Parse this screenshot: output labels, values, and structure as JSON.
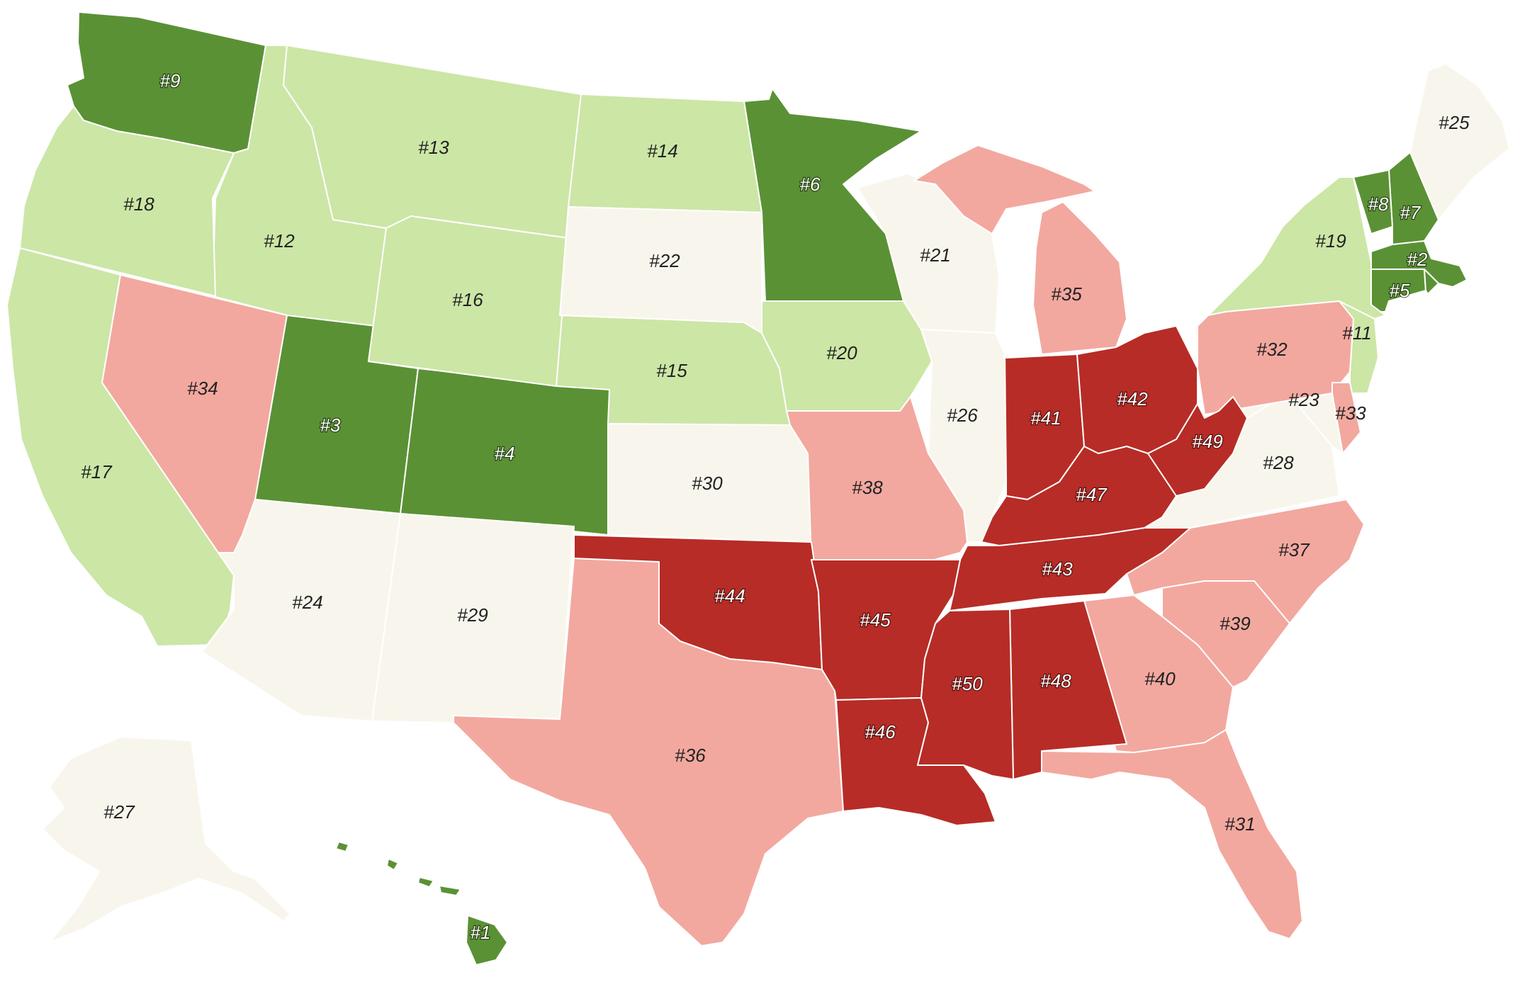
{
  "colors": {
    "dark_green": "#5b9135",
    "light_green": "#cce6a6",
    "cream": "#f8f6ec",
    "pink": "#f2a89f",
    "dark_red": "#b72c26"
  },
  "states": [
    {
      "abbr": "HI",
      "rank": "#1",
      "tier": "dark_green"
    },
    {
      "abbr": "MA",
      "rank": "#2",
      "tier": "dark_green"
    },
    {
      "abbr": "UT",
      "rank": "#3",
      "tier": "dark_green"
    },
    {
      "abbr": "CO",
      "rank": "#4",
      "tier": "dark_green"
    },
    {
      "abbr": "CT",
      "rank": "#5",
      "tier": "dark_green"
    },
    {
      "abbr": "MN",
      "rank": "#6",
      "tier": "dark_green"
    },
    {
      "abbr": "NH",
      "rank": "#7",
      "tier": "dark_green"
    },
    {
      "abbr": "VT",
      "rank": "#8",
      "tier": "dark_green"
    },
    {
      "abbr": "WA",
      "rank": "#9",
      "tier": "dark_green"
    },
    {
      "abbr": "RI",
      "rank": "",
      "tier": "dark_green"
    },
    {
      "abbr": "NJ",
      "rank": "#11",
      "tier": "light_green"
    },
    {
      "abbr": "ID",
      "rank": "#12",
      "tier": "light_green"
    },
    {
      "abbr": "MT",
      "rank": "#13",
      "tier": "light_green"
    },
    {
      "abbr": "ND",
      "rank": "#14",
      "tier": "light_green"
    },
    {
      "abbr": "NE",
      "rank": "#15",
      "tier": "light_green"
    },
    {
      "abbr": "WY",
      "rank": "#16",
      "tier": "light_green"
    },
    {
      "abbr": "CA",
      "rank": "#17",
      "tier": "light_green"
    },
    {
      "abbr": "OR",
      "rank": "#18",
      "tier": "light_green"
    },
    {
      "abbr": "NY",
      "rank": "#19",
      "tier": "light_green"
    },
    {
      "abbr": "IA",
      "rank": "#20",
      "tier": "light_green"
    },
    {
      "abbr": "WI",
      "rank": "#21",
      "tier": "cream"
    },
    {
      "abbr": "SD",
      "rank": "#22",
      "tier": "cream"
    },
    {
      "abbr": "MD",
      "rank": "#23",
      "tier": "cream"
    },
    {
      "abbr": "AZ",
      "rank": "#24",
      "tier": "cream"
    },
    {
      "abbr": "ME",
      "rank": "#25",
      "tier": "cream"
    },
    {
      "abbr": "IL",
      "rank": "#26",
      "tier": "cream"
    },
    {
      "abbr": "AK",
      "rank": "#27",
      "tier": "cream"
    },
    {
      "abbr": "VA",
      "rank": "#28",
      "tier": "cream"
    },
    {
      "abbr": "NM",
      "rank": "#29",
      "tier": "cream"
    },
    {
      "abbr": "KS",
      "rank": "#30",
      "tier": "cream"
    },
    {
      "abbr": "FL",
      "rank": "#31",
      "tier": "pink"
    },
    {
      "abbr": "PA",
      "rank": "#32",
      "tier": "pink"
    },
    {
      "abbr": "DE",
      "rank": "#33",
      "tier": "pink"
    },
    {
      "abbr": "NV",
      "rank": "#34",
      "tier": "pink"
    },
    {
      "abbr": "MI",
      "rank": "#35",
      "tier": "pink"
    },
    {
      "abbr": "TX",
      "rank": "#36",
      "tier": "pink"
    },
    {
      "abbr": "NC",
      "rank": "#37",
      "tier": "pink"
    },
    {
      "abbr": "MO",
      "rank": "#38",
      "tier": "pink"
    },
    {
      "abbr": "SC",
      "rank": "#39",
      "tier": "pink"
    },
    {
      "abbr": "GA",
      "rank": "#40",
      "tier": "pink"
    },
    {
      "abbr": "IN",
      "rank": "#41",
      "tier": "dark_red"
    },
    {
      "abbr": "OH",
      "rank": "#42",
      "tier": "dark_red"
    },
    {
      "abbr": "TN",
      "rank": "#43",
      "tier": "dark_red"
    },
    {
      "abbr": "OK",
      "rank": "#44",
      "tier": "dark_red"
    },
    {
      "abbr": "AR",
      "rank": "#45",
      "tier": "dark_red"
    },
    {
      "abbr": "LA",
      "rank": "#46",
      "tier": "dark_red"
    },
    {
      "abbr": "KY",
      "rank": "#47",
      "tier": "dark_red"
    },
    {
      "abbr": "AL",
      "rank": "#48",
      "tier": "dark_red"
    },
    {
      "abbr": "WV",
      "rank": "#49",
      "tier": "dark_red"
    },
    {
      "abbr": "MS",
      "rank": "#50",
      "tier": "dark_red"
    }
  ]
}
